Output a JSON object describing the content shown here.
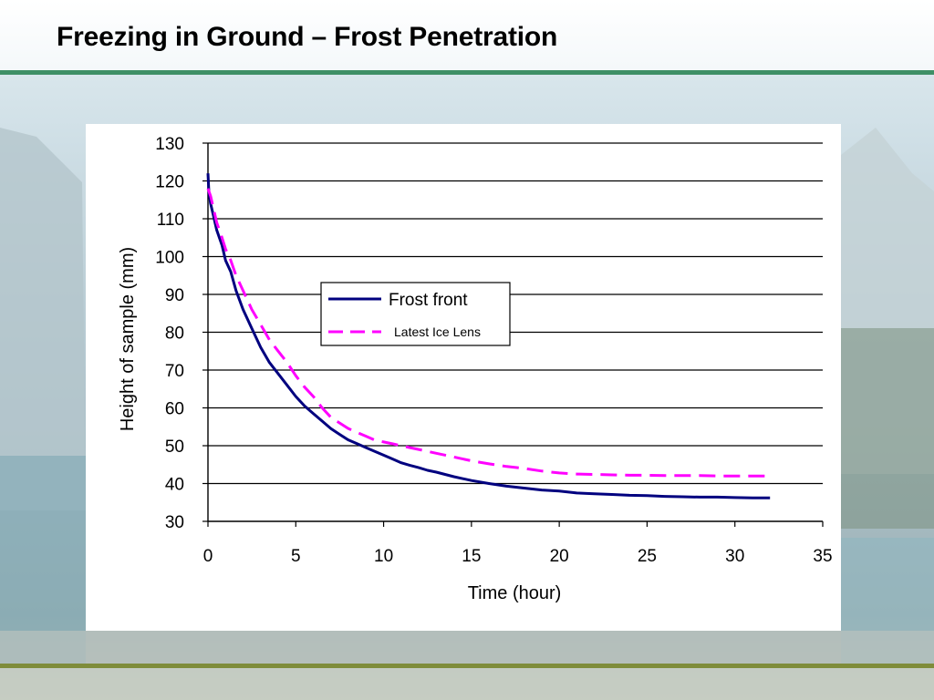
{
  "slide": {
    "title": "Freezing in Ground – Frost Penetration"
  },
  "colors": {
    "title_rule": "#3f9066",
    "bottom_rule": "#7f8c3a",
    "frost_front": "#00007f",
    "ice_lens": "#ff00ff"
  },
  "chart_data": {
    "type": "line",
    "title": "",
    "xlabel": "Time (hour)",
    "ylabel": "Height of sample (mm)",
    "xlim": [
      0,
      35
    ],
    "ylim": [
      30,
      130
    ],
    "xticks": [
      0,
      5,
      10,
      15,
      20,
      25,
      30,
      35
    ],
    "yticks": [
      30,
      40,
      50,
      60,
      70,
      80,
      90,
      100,
      110,
      120,
      130
    ],
    "grid": "horizontal",
    "legend_position": "center-left",
    "series": [
      {
        "name": "Frost front",
        "style": "solid",
        "color": "#00007f",
        "x": [
          0.0,
          0.05,
          0.15,
          0.3,
          0.5,
          0.8,
          1.0,
          1.3,
          1.6,
          2.0,
          2.5,
          3.0,
          3.5,
          4.0,
          4.5,
          5.0,
          5.5,
          6.0,
          6.5,
          7.0,
          7.5,
          8.0,
          8.5,
          9.0,
          9.5,
          10.0,
          10.5,
          11.0,
          11.5,
          12.0,
          12.5,
          13.0,
          14.0,
          15.0,
          16.0,
          17.0,
          18.0,
          19.0,
          20.0,
          21.0,
          22.0,
          23.0,
          24.0,
          25.0,
          26.0,
          27.0,
          28.0,
          29.0,
          30.0,
          31.0,
          32.0
        ],
        "y": [
          122,
          117,
          114,
          111,
          107,
          103,
          99,
          96,
          91,
          86,
          81,
          76,
          72,
          69,
          66,
          63,
          60.5,
          58.5,
          56.5,
          54.5,
          53,
          51.5,
          50.5,
          49.5,
          48.5,
          47.5,
          46.5,
          45.5,
          44.8,
          44.2,
          43.5,
          43,
          41.8,
          40.8,
          40,
          39.3,
          38.8,
          38.3,
          38,
          37.5,
          37.3,
          37.1,
          36.9,
          36.8,
          36.6,
          36.5,
          36.4,
          36.4,
          36.3,
          36.2,
          36.2
        ]
      },
      {
        "name": "Latest Ice Lens",
        "style": "dashed",
        "color": "#ff00ff",
        "x": [
          0.0,
          0.15,
          0.3,
          0.5,
          0.8,
          1.0,
          1.3,
          1.6,
          2.0,
          2.5,
          3.0,
          3.5,
          4.0,
          4.5,
          5.0,
          5.5,
          6.0,
          6.5,
          7.0,
          7.5,
          8.0,
          8.5,
          9.0,
          9.5,
          10.0,
          10.5,
          11.0,
          11.5,
          12.0,
          13.0,
          14.0,
          15.0,
          16.0,
          17.0,
          18.0,
          19.0,
          20.0,
          21.0,
          22.0,
          23.0,
          24.0,
          25.0,
          26.0,
          27.0,
          28.0,
          29.0,
          30.0,
          31.0,
          32.0
        ],
        "y": [
          118,
          116,
          113,
          109,
          105,
          102,
          99,
          95,
          91,
          86,
          82,
          78,
          75,
          72,
          68.5,
          65.5,
          63,
          60,
          57.5,
          56,
          54.5,
          53.5,
          52.5,
          51.5,
          51,
          50.5,
          50,
          49.5,
          49,
          48,
          47,
          46,
          45.2,
          44.5,
          44,
          43.3,
          42.8,
          42.5,
          42.4,
          42.3,
          42.2,
          42.2,
          42.1,
          42.1,
          42.1,
          42.0,
          42.0,
          42.0,
          42.0
        ]
      }
    ]
  }
}
